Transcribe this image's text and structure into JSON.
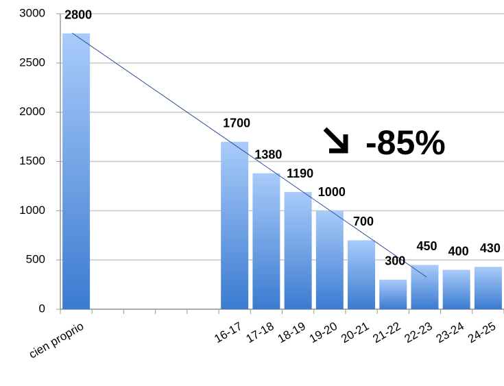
{
  "chart_data": {
    "type": "bar",
    "categories": [
      "cien proprio",
      null,
      null,
      null,
      null,
      "16-17",
      "17-18",
      "18-19",
      "19-20",
      "20-21",
      "21-22",
      "22-23",
      "23-24",
      "24-25"
    ],
    "values": [
      2800,
      null,
      null,
      null,
      null,
      1700,
      1380,
      1190,
      1000,
      700,
      300,
      450,
      400,
      430
    ],
    "ylim": [
      0,
      3000
    ],
    "yticks": [
      0,
      500,
      1000,
      1500,
      2000,
      2500,
      3000
    ],
    "grid": true,
    "annotation": "-85%"
  }
}
